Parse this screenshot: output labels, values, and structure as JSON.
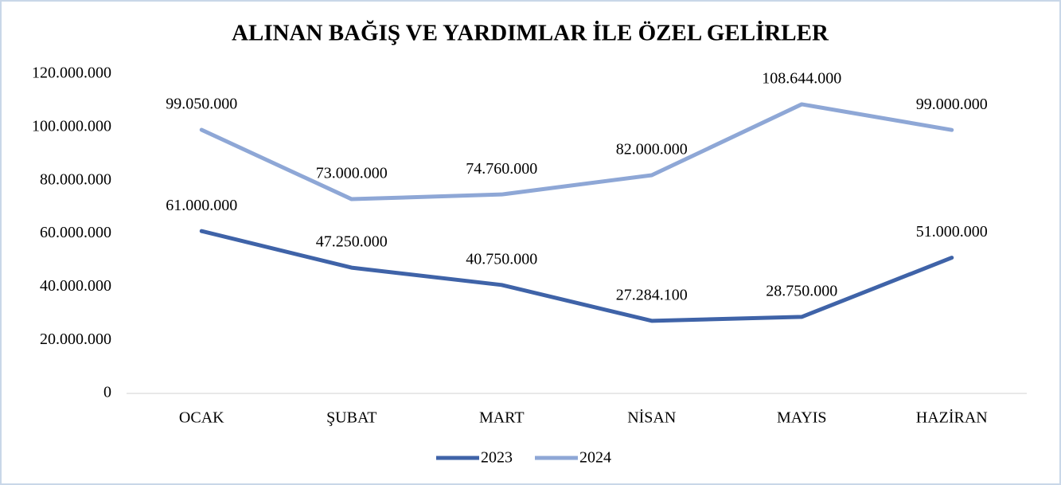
{
  "chart_data": {
    "type": "line",
    "title": "ALINAN BAĞIŞ VE YARDIMLAR İLE ÖZEL GELİRLER",
    "categories": [
      "OCAK",
      "ŞUBAT",
      "MART",
      "NİSAN",
      "MAYIS",
      "HAZİRAN"
    ],
    "series": [
      {
        "name": "2023",
        "color": "#3f63a8",
        "values": [
          61000000,
          47250000,
          40750000,
          27284100,
          28750000,
          51000000
        ],
        "value_labels": [
          "61.000.000",
          "47.250.000",
          "40.750.000",
          "27.284.100",
          "28.750.000",
          "51.000.000"
        ]
      },
      {
        "name": "2024",
        "color": "#8ea7d6",
        "values": [
          99050000,
          73000000,
          74760000,
          82000000,
          108644000,
          99000000
        ],
        "value_labels": [
          "99.050.000",
          "73.000.000",
          "74.760.000",
          "82.000.000",
          "108.644.000",
          "99.000.000"
        ]
      }
    ],
    "ylim": [
      0,
      120000000
    ],
    "yticks": [
      0,
      {
        "value": 20000000,
        "label": "20.000.000"
      },
      {
        "value": 40000000,
        "label": "40.000.000"
      },
      {
        "value": 60000000,
        "label": "60.000.000"
      },
      {
        "value": 80000000,
        "label": "80.000.000"
      },
      {
        "value": 100000000,
        "label": "100.000.000"
      },
      {
        "value": 120000000,
        "label": "120.000.000"
      }
    ],
    "grid": false,
    "legend": "bottom"
  }
}
